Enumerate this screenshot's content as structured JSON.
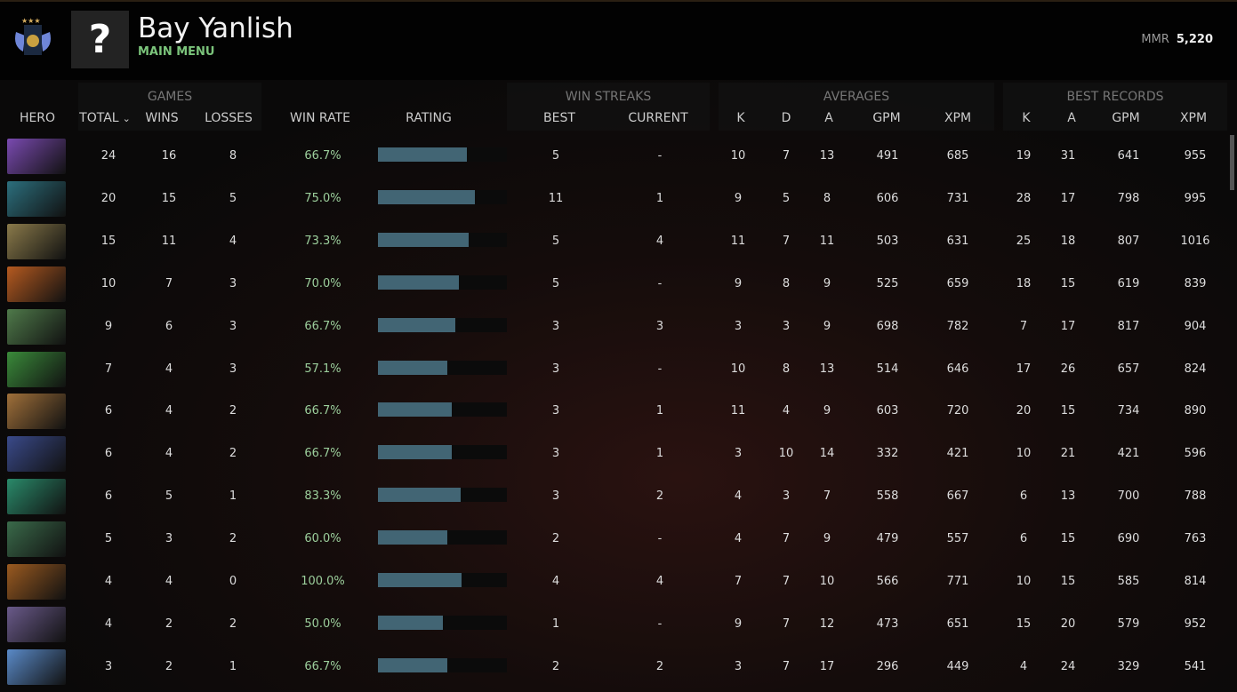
{
  "header": {
    "player_name": "Bay Yanlish",
    "subtitle": "MAIN MENU",
    "avatar_placeholder": "?",
    "mmr_label": "MMR",
    "mmr_value": "5,220"
  },
  "groups": {
    "games": "GAMES",
    "win_streaks": "WIN STREAKS",
    "averages": "AVERAGES",
    "best_records": "BEST RECORDS"
  },
  "columns": {
    "hero": "HERO",
    "total": "TOTAL",
    "wins": "WINS",
    "losses": "LOSSES",
    "win_rate": "WIN RATE",
    "rating": "RATING",
    "best": "BEST",
    "current": "CURRENT",
    "k": "K",
    "d": "D",
    "a": "A",
    "gpm": "GPM",
    "xpm": "XPM",
    "bk": "K",
    "ba": "A",
    "bgpm": "GPM",
    "bxpm": "XPM",
    "sort_icon": "⌄"
  },
  "rows": [
    {
      "color": "#7a4ab0",
      "total": "24",
      "wins": "16",
      "losses": "8",
      "wr": "66.7%",
      "rating": 0.69,
      "best": "5",
      "cur": "-",
      "k": "10",
      "d": "7",
      "a": "13",
      "gpm": "491",
      "xpm": "685",
      "bk": "19",
      "ba": "31",
      "bgpm": "641",
      "bxpm": "955"
    },
    {
      "color": "#2c6f7d",
      "total": "20",
      "wins": "15",
      "losses": "5",
      "wr": "75.0%",
      "rating": 0.75,
      "best": "11",
      "cur": "1",
      "k": "9",
      "d": "5",
      "a": "8",
      "gpm": "606",
      "xpm": "731",
      "bk": "28",
      "ba": "17",
      "bgpm": "798",
      "bxpm": "995"
    },
    {
      "color": "#8a7a4a",
      "total": "15",
      "wins": "11",
      "losses": "4",
      "wr": "73.3%",
      "rating": 0.7,
      "best": "5",
      "cur": "4",
      "k": "11",
      "d": "7",
      "a": "11",
      "gpm": "503",
      "xpm": "631",
      "bk": "25",
      "ba": "18",
      "bgpm": "807",
      "bxpm": "1016"
    },
    {
      "color": "#b55a20",
      "total": "10",
      "wins": "7",
      "losses": "3",
      "wr": "70.0%",
      "rating": 0.63,
      "best": "5",
      "cur": "-",
      "k": "9",
      "d": "8",
      "a": "9",
      "gpm": "525",
      "xpm": "659",
      "bk": "18",
      "ba": "15",
      "bgpm": "619",
      "bxpm": "839"
    },
    {
      "color": "#4f7a4a",
      "total": "9",
      "wins": "6",
      "losses": "3",
      "wr": "66.7%",
      "rating": 0.6,
      "best": "3",
      "cur": "3",
      "k": "3",
      "d": "3",
      "a": "9",
      "gpm": "698",
      "xpm": "782",
      "bk": "7",
      "ba": "17",
      "bgpm": "817",
      "bxpm": "904"
    },
    {
      "color": "#3a8a3a",
      "total": "7",
      "wins": "4",
      "losses": "3",
      "wr": "57.1%",
      "rating": 0.54,
      "best": "3",
      "cur": "-",
      "k": "10",
      "d": "8",
      "a": "13",
      "gpm": "514",
      "xpm": "646",
      "bk": "17",
      "ba": "26",
      "bgpm": "657",
      "bxpm": "824"
    },
    {
      "color": "#a0703a",
      "total": "6",
      "wins": "4",
      "losses": "2",
      "wr": "66.7%",
      "rating": 0.57,
      "best": "3",
      "cur": "1",
      "k": "11",
      "d": "4",
      "a": "9",
      "gpm": "603",
      "xpm": "720",
      "bk": "20",
      "ba": "15",
      "bgpm": "734",
      "bxpm": "890"
    },
    {
      "color": "#3a4a8a",
      "total": "6",
      "wins": "4",
      "losses": "2",
      "wr": "66.7%",
      "rating": 0.57,
      "best": "3",
      "cur": "1",
      "k": "3",
      "d": "10",
      "a": "14",
      "gpm": "332",
      "xpm": "421",
      "bk": "10",
      "ba": "21",
      "bgpm": "421",
      "bxpm": "596"
    },
    {
      "color": "#2a8a6a",
      "total": "6",
      "wins": "5",
      "losses": "1",
      "wr": "83.3%",
      "rating": 0.64,
      "best": "3",
      "cur": "2",
      "k": "4",
      "d": "3",
      "a": "7",
      "gpm": "558",
      "xpm": "667",
      "bk": "6",
      "ba": "13",
      "bgpm": "700",
      "bxpm": "788"
    },
    {
      "color": "#3a6a4a",
      "total": "5",
      "wins": "3",
      "losses": "2",
      "wr": "60.0%",
      "rating": 0.54,
      "best": "2",
      "cur": "-",
      "k": "4",
      "d": "7",
      "a": "9",
      "gpm": "479",
      "xpm": "557",
      "bk": "6",
      "ba": "15",
      "bgpm": "690",
      "bxpm": "763"
    },
    {
      "color": "#9a5a20",
      "total": "4",
      "wins": "4",
      "losses": "0",
      "wr": "100.0%",
      "rating": 0.65,
      "best": "4",
      "cur": "4",
      "k": "7",
      "d": "7",
      "a": "10",
      "gpm": "566",
      "xpm": "771",
      "bk": "10",
      "ba": "15",
      "bgpm": "585",
      "bxpm": "814"
    },
    {
      "color": "#6a5a8a",
      "total": "4",
      "wins": "2",
      "losses": "2",
      "wr": "50.0%",
      "rating": 0.5,
      "best": "1",
      "cur": "-",
      "k": "9",
      "d": "7",
      "a": "12",
      "gpm": "473",
      "xpm": "651",
      "bk": "15",
      "ba": "20",
      "bgpm": "579",
      "bxpm": "952"
    },
    {
      "color": "#5a8ac8",
      "total": "3",
      "wins": "2",
      "losses": "1",
      "wr": "66.7%",
      "rating": 0.54,
      "best": "2",
      "cur": "2",
      "k": "3",
      "d": "7",
      "a": "17",
      "gpm": "296",
      "xpm": "449",
      "bk": "4",
      "ba": "24",
      "bgpm": "329",
      "bxpm": "541"
    }
  ]
}
